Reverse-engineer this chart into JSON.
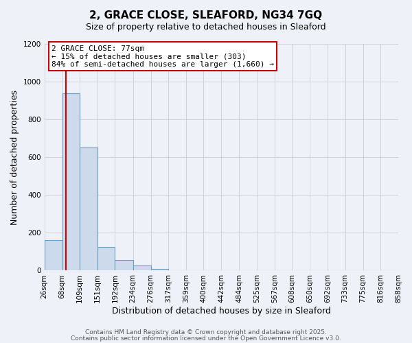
{
  "title": "2, GRACE CLOSE, SLEAFORD, NG34 7GQ",
  "subtitle": "Size of property relative to detached houses in Sleaford",
  "xlabel": "Distribution of detached houses by size in Sleaford",
  "ylabel": "Number of detached properties",
  "bin_edges": [
    26,
    68,
    109,
    151,
    192,
    234,
    276,
    317,
    359,
    400,
    442,
    484,
    525,
    567,
    608,
    650,
    692,
    733,
    775,
    816,
    858
  ],
  "bin_labels": [
    "26sqm",
    "68sqm",
    "109sqm",
    "151sqm",
    "192sqm",
    "234sqm",
    "276sqm",
    "317sqm",
    "359sqm",
    "400sqm",
    "442sqm",
    "484sqm",
    "525sqm",
    "567sqm",
    "608sqm",
    "650sqm",
    "692sqm",
    "733sqm",
    "775sqm",
    "816sqm",
    "858sqm"
  ],
  "bar_heights": [
    160,
    940,
    650,
    125,
    57,
    28,
    10,
    0,
    0,
    0,
    0,
    1,
    0,
    0,
    0,
    0,
    0,
    0,
    0,
    0
  ],
  "bar_color": "#ccdaeb",
  "bar_edge_color": "#6a9ec0",
  "property_line_x": 77,
  "property_line_color": "#cc0000",
  "ylim": [
    0,
    1200
  ],
  "yticks": [
    0,
    200,
    400,
    600,
    800,
    1000,
    1200
  ],
  "annotation_title": "2 GRACE CLOSE: 77sqm",
  "annotation_line1": "← 15% of detached houses are smaller (303)",
  "annotation_line2": "84% of semi-detached houses are larger (1,660) →",
  "annotation_box_facecolor": "#ffffff",
  "annotation_box_edgecolor": "#cc0000",
  "footer_line1": "Contains HM Land Registry data © Crown copyright and database right 2025.",
  "footer_line2": "Contains public sector information licensed under the Open Government Licence v3.0.",
  "background_color": "#eef2f8",
  "grid_color": "#c5cdd8",
  "title_fontsize": 11,
  "subtitle_fontsize": 9,
  "axis_label_fontsize": 9,
  "tick_fontsize": 7.5,
  "annotation_fontsize": 8,
  "footer_fontsize": 6.5
}
